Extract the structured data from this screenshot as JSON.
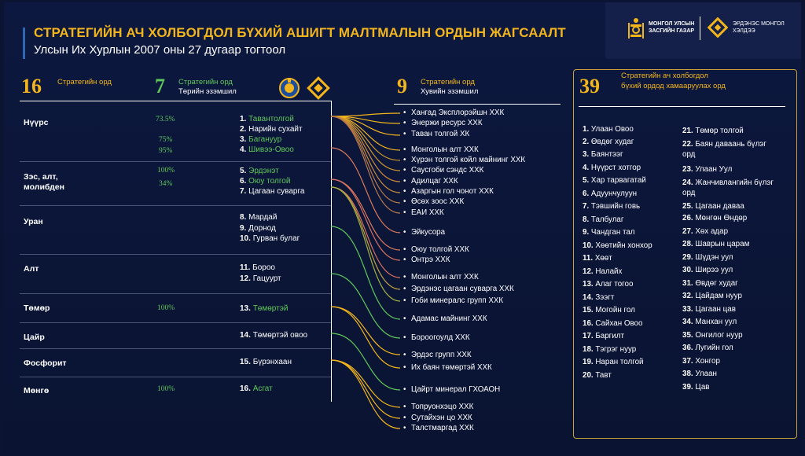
{
  "header": {
    "title": "СТРАТЕГИЙН АЧ ХОЛБОГДОЛ БҮХИЙ АШИГТ МАЛТМАЛЫН ОРДЫН ЖАГСААЛТ",
    "subtitle": "Улсын Их Хурлын 2007 оны 27 дугаар тогтоол",
    "logo1_line1": "МОНГОЛ УЛСЫН",
    "logo1_line2": "ЗАСГИЙН ГАЗАР",
    "logo2_line1": "ЭРДЭНЭС МОНГОЛ",
    "logo2_line2": "ХЭЛДЭЭ"
  },
  "col_deposits": {
    "number": "16",
    "label": "Стратегийн орд"
  },
  "col_state": {
    "number": "7",
    "label_line1": "Стратегийн орд",
    "label_line2": "Төрийн эзэмшил"
  },
  "col_private": {
    "number": "9",
    "label_line1": "Стратегийн орд",
    "label_line2": "Хувийн эзэмшил"
  },
  "col_related": {
    "number": "39",
    "label_line1": "Стратегийн ач холбогдол",
    "label_line2": "бүхий ордод хамааруулах орд"
  },
  "minerals": [
    {
      "name": "Нүүрс"
    },
    {
      "name": "Зэс, алт,"
    },
    {
      "name": "молибден"
    },
    {
      "name": "Уран"
    },
    {
      "name": "Алт"
    },
    {
      "name": "Төмөр"
    },
    {
      "name": "Цайр"
    },
    {
      "name": "Фосфорит"
    },
    {
      "name": "Мөнгө"
    }
  ],
  "percents": [
    "73.5%",
    "75%",
    "95%",
    "100%",
    "34%",
    "100%",
    "100%"
  ],
  "deposits": [
    {
      "num": "1.",
      "name": "Тавантолгой"
    },
    {
      "num": "2.",
      "name": "Нарийн сухайт"
    },
    {
      "num": "3.",
      "name": "Багануур"
    },
    {
      "num": "4.",
      "name": "Шивээ-Овоо"
    },
    {
      "num": "5.",
      "name": "Эрдэнэт"
    },
    {
      "num": "6.",
      "name": "Оюу толгой"
    },
    {
      "num": "7.",
      "name": "Цагаан суварга"
    },
    {
      "num": "8.",
      "name": "Мардай"
    },
    {
      "num": "9.",
      "name": "Дорнод"
    },
    {
      "num": "10.",
      "name": "Гурван булаг"
    },
    {
      "num": "11.",
      "name": "Бороо"
    },
    {
      "num": "12.",
      "name": "Гацуурт"
    },
    {
      "num": "13.",
      "name": "Төмөртэй"
    },
    {
      "num": "14.",
      "name": "Төмөртэй овоо"
    },
    {
      "num": "15.",
      "name": "Бүрэнхаан"
    },
    {
      "num": "16.",
      "name": "Асгат"
    }
  ],
  "companies": [
    "Хангад Эксплорэйшн ХХК",
    "Энержи ресурс ХХК",
    "Таван толгой ХК",
    "Монголын алт ХХК",
    "Хүрэн толгой койл майнинг ХХК",
    "Саусгоби сэндс ХХК",
    "Адилцаг ХХК",
    "Азаргын гол чонот ХХК",
    "Өсөх зоос ХХК",
    "ЕАИ ХХК",
    "Эйкусора",
    "Оюу толгой ХХК",
    "Онтрэ ХХК",
    "Монголын алт ХХК",
    "Эрдэнэс цагаан суварга ХХК",
    "Гоби минералс групп ХХК",
    "Адамас майнинг ХХК",
    "Бороогоулд ХХК",
    "Эрдэс групп ХХК",
    "Их баян төмөртэй ХХК",
    "Цайрт минерал ГХОАОН",
    "Топруонхэцо ХХК",
    "Сутайхэн цо ХХК",
    "Талстмаргад ХХК"
  ],
  "related": [
    {
      "num": "1.",
      "name": "Улаан Овоо"
    },
    {
      "num": "2.",
      "name": "Өвдөг худаг"
    },
    {
      "num": "3.",
      "name": "Баянтээг"
    },
    {
      "num": "4.",
      "name": "Нүүрст хотгор"
    },
    {
      "num": "5.",
      "name": "Хар тарвагатай"
    },
    {
      "num": "6.",
      "name": "Адуунчулуун"
    },
    {
      "num": "7.",
      "name": "Тэвшийн говь"
    },
    {
      "num": "8.",
      "name": "Талбулаг"
    },
    {
      "num": "9.",
      "name": "Чандган тал"
    },
    {
      "num": "10.",
      "name": "Хөөтийн хонхор"
    },
    {
      "num": "11.",
      "name": "Хөөт"
    },
    {
      "num": "12.",
      "name": "Налайх"
    },
    {
      "num": "13.",
      "name": "Алаг тогоо"
    },
    {
      "num": "14.",
      "name": "Зээгт"
    },
    {
      "num": "15.",
      "name": "Могойн гол"
    },
    {
      "num": "16.",
      "name": "Сайхан Овоо"
    },
    {
      "num": "17.",
      "name": "Баргилт"
    },
    {
      "num": "18.",
      "name": "Тэгрэг нуур"
    },
    {
      "num": "19.",
      "name": "Наран толгой"
    },
    {
      "num": "20.",
      "name": "Тавт"
    },
    {
      "num": "21.",
      "name": "Төмөр толгой"
    },
    {
      "num": "22.",
      "name": "Баян даваань бүлэг"
    },
    {
      "num": "",
      "name": "орд"
    },
    {
      "num": "23.",
      "name": "Улаан Уул"
    },
    {
      "num": "24.",
      "name": "Жанчивлангийн бүлэг"
    },
    {
      "num": "",
      "name": "орд"
    },
    {
      "num": "25.",
      "name": "Цагаан даваа"
    },
    {
      "num": "26.",
      "name": "Мөнгөн Өндөр"
    },
    {
      "num": "27.",
      "name": "Хөх адар"
    },
    {
      "num": "28.",
      "name": "Шаврын царам"
    },
    {
      "num": "29.",
      "name": "Шүдэн уул"
    },
    {
      "num": "30.",
      "name": "Ширээ уул"
    },
    {
      "num": "31.",
      "name": "Өвдөг худаг"
    },
    {
      "num": "32.",
      "name": "Цайдам нуур"
    },
    {
      "num": "33.",
      "name": "Цагаан цав"
    },
    {
      "num": "34.",
      "name": "Манхан уул"
    },
    {
      "num": "35.",
      "name": "Онгилог нуур"
    },
    {
      "num": "36.",
      "name": "Лугийн гол"
    },
    {
      "num": "37.",
      "name": "Хонгор"
    },
    {
      "num": "38.",
      "name": "Улаан"
    },
    {
      "num": "39.",
      "name": "Цав"
    }
  ],
  "colors": {
    "accent": "#f2b51c",
    "green": "#5ec85a",
    "background": "#0b1536"
  }
}
